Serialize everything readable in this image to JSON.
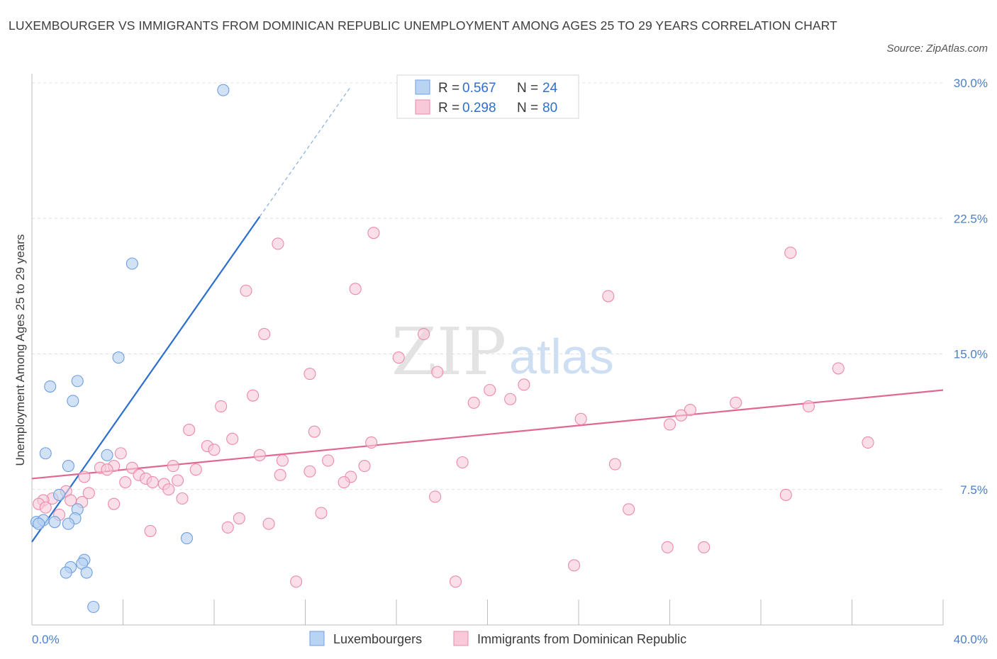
{
  "title": "LUXEMBOURGER VS IMMIGRANTS FROM DOMINICAN REPUBLIC UNEMPLOYMENT AMONG AGES 25 TO 29 YEARS CORRELATION CHART",
  "source": "Source: ZipAtlas.com",
  "watermark": {
    "zip": "ZIP",
    "atlas": "atlas"
  },
  "colors": {
    "blue_fill": "#b9d3f3",
    "blue_stroke": "#6f9fe0",
    "blue_line": "#2b6fce",
    "pink_fill": "#f8c9d8",
    "pink_stroke": "#eb8aa8",
    "pink_line": "#e06890",
    "tick_text": "#4a7fc9",
    "grid": "#e0e0e0"
  },
  "legend": {
    "rows": [
      {
        "r_label": "R = ",
        "r_value": "0.567",
        "n_label": "N = ",
        "n_value": "24",
        "series": "blue"
      },
      {
        "r_label": "R = ",
        "r_value": "0.298",
        "n_label": "N = ",
        "n_value": "80",
        "series": "pink"
      }
    ]
  },
  "bottom_legend": [
    "Luxembourgers",
    "Immigrants from Dominican Republic"
  ],
  "chart_data": {
    "type": "scatter",
    "title": "LUXEMBOURGER VS IMMIGRANTS FROM DOMINICAN REPUBLIC UNEMPLOYMENT AMONG AGES 25 TO 29 YEARS CORRELATION CHART",
    "xlabel": "",
    "ylabel": "Unemployment Among Ages 25 to 29 years",
    "xlim": [
      0,
      40
    ],
    "ylim": [
      0,
      30
    ],
    "x_ticks": [
      0,
      4,
      8,
      12,
      16,
      20,
      24,
      28,
      32,
      36,
      40
    ],
    "x_tick_labels": [
      {
        "value": 0,
        "label": "0.0%"
      },
      {
        "value": 40,
        "label": "40.0%"
      }
    ],
    "y_ticks": [
      {
        "value": 7.5,
        "label": "7.5%"
      },
      {
        "value": 15.0,
        "label": "15.0%"
      },
      {
        "value": 22.5,
        "label": "22.5%"
      },
      {
        "value": 30.0,
        "label": "30.0%"
      }
    ],
    "grid": "horizontal dashed",
    "legend_position": "top-center",
    "series": [
      {
        "name": "Luxembourgers",
        "color": "#b9d3f3",
        "r": 0.567,
        "n": 24,
        "trend": {
          "x": [
            0,
            10.0
          ],
          "y": [
            4.6,
            22.6
          ],
          "dashed_to": [
            14.0,
            29.8
          ]
        },
        "points": [
          [
            8.4,
            29.6
          ],
          [
            4.4,
            20.0
          ],
          [
            3.8,
            14.8
          ],
          [
            2.0,
            13.5
          ],
          [
            0.8,
            13.2
          ],
          [
            1.8,
            12.4
          ],
          [
            0.6,
            9.5
          ],
          [
            3.3,
            9.4
          ],
          [
            1.6,
            8.8
          ],
          [
            1.2,
            7.2
          ],
          [
            2.0,
            6.4
          ],
          [
            0.2,
            5.7
          ],
          [
            0.5,
            5.8
          ],
          [
            1.9,
            5.9
          ],
          [
            0.3,
            5.6
          ],
          [
            1.0,
            5.7
          ],
          [
            1.6,
            5.6
          ],
          [
            6.8,
            4.8
          ],
          [
            2.3,
            3.6
          ],
          [
            2.2,
            3.4
          ],
          [
            1.7,
            3.2
          ],
          [
            1.5,
            2.9
          ],
          [
            2.4,
            2.9
          ],
          [
            2.7,
            1.0
          ]
        ]
      },
      {
        "name": "Immigrants from Dominican Republic",
        "color": "#f8c9d8",
        "r": 0.298,
        "n": 80,
        "trend": {
          "x": [
            0,
            40
          ],
          "y": [
            8.1,
            13.0
          ]
        },
        "points": [
          [
            15.0,
            21.7
          ],
          [
            10.8,
            21.1
          ],
          [
            33.3,
            20.6
          ],
          [
            14.2,
            18.6
          ],
          [
            9.4,
            18.5
          ],
          [
            25.3,
            18.2
          ],
          [
            10.2,
            16.1
          ],
          [
            17.2,
            16.1
          ],
          [
            16.1,
            14.8
          ],
          [
            35.4,
            14.2
          ],
          [
            12.2,
            13.9
          ],
          [
            17.8,
            14.0
          ],
          [
            21.6,
            13.3
          ],
          [
            20.1,
            13.0
          ],
          [
            21.0,
            12.5
          ],
          [
            9.7,
            12.7
          ],
          [
            19.4,
            12.3
          ],
          [
            8.3,
            12.1
          ],
          [
            30.9,
            12.3
          ],
          [
            28.9,
            11.9
          ],
          [
            28.5,
            11.6
          ],
          [
            34.1,
            12.1
          ],
          [
            24.1,
            11.4
          ],
          [
            28.0,
            11.1
          ],
          [
            6.9,
            10.8
          ],
          [
            12.4,
            10.7
          ],
          [
            8.8,
            10.3
          ],
          [
            14.9,
            10.1
          ],
          [
            7.7,
            9.9
          ],
          [
            8.0,
            9.7
          ],
          [
            36.7,
            10.1
          ],
          [
            3.9,
            9.5
          ],
          [
            10.0,
            9.4
          ],
          [
            11.0,
            9.1
          ],
          [
            13.0,
            9.1
          ],
          [
            18.9,
            9.0
          ],
          [
            25.6,
            8.9
          ],
          [
            3.6,
            8.8
          ],
          [
            14.6,
            8.8
          ],
          [
            6.2,
            8.8
          ],
          [
            3.0,
            8.7
          ],
          [
            4.4,
            8.7
          ],
          [
            3.3,
            8.6
          ],
          [
            7.2,
            8.6
          ],
          [
            12.2,
            8.5
          ],
          [
            10.9,
            8.3
          ],
          [
            14.0,
            8.2
          ],
          [
            4.7,
            8.3
          ],
          [
            2.3,
            8.2
          ],
          [
            5.0,
            8.1
          ],
          [
            6.4,
            8.0
          ],
          [
            13.7,
            7.9
          ],
          [
            4.1,
            7.9
          ],
          [
            5.3,
            7.9
          ],
          [
            5.8,
            7.8
          ],
          [
            6.0,
            7.5
          ],
          [
            1.5,
            7.4
          ],
          [
            2.5,
            7.3
          ],
          [
            17.7,
            7.1
          ],
          [
            33.1,
            7.2
          ],
          [
            0.9,
            7.0
          ],
          [
            1.7,
            6.9
          ],
          [
            0.5,
            6.9
          ],
          [
            6.6,
            7.0
          ],
          [
            0.3,
            6.7
          ],
          [
            3.6,
            6.7
          ],
          [
            2.2,
            6.8
          ],
          [
            0.6,
            6.5
          ],
          [
            26.2,
            6.4
          ],
          [
            12.7,
            6.2
          ],
          [
            1.2,
            6.1
          ],
          [
            9.1,
            5.9
          ],
          [
            10.4,
            5.6
          ],
          [
            8.6,
            5.4
          ],
          [
            5.2,
            5.2
          ],
          [
            27.9,
            4.3
          ],
          [
            29.5,
            4.3
          ],
          [
            23.8,
            3.3
          ],
          [
            11.6,
            2.4
          ],
          [
            18.6,
            2.4
          ]
        ]
      }
    ]
  }
}
